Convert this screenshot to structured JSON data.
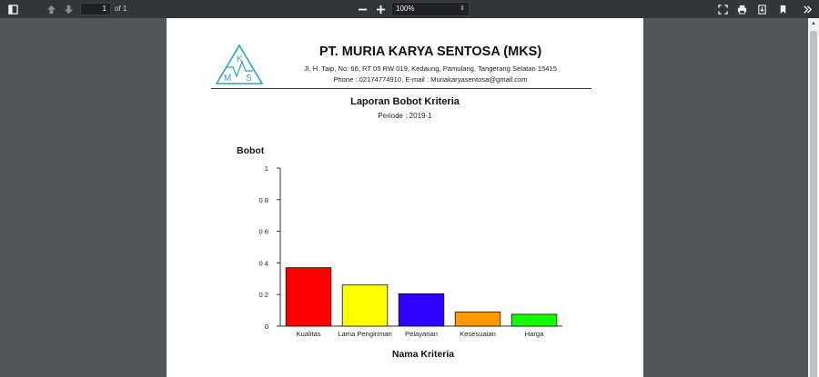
{
  "viewer": {
    "page_current": "1",
    "page_total": "of 1",
    "zoom": "100%",
    "icons": {
      "sidebar": "sidebar-toggle-icon",
      "prev": "arrow-up-icon",
      "next": "arrow-down-icon",
      "zoom_out": "minus-icon",
      "zoom_in": "plus-icon",
      "fit": "fit-page-icon",
      "print": "printer-icon",
      "download": "download-icon",
      "bookmark": "bookmark-icon",
      "more": "double-chevron-right-icon"
    }
  },
  "document": {
    "company": "PT. MURIA KARYA SENTOSA (MKS)",
    "address": "Jl. H. Taip, No: 66, RT 05 RW 019, Kedaung, Pamulang, Tangerang Selatan 15415",
    "contact": "Phone : 02174774910, E-mail : Muriakaryasentosa@gmail.com",
    "logo_letters": [
      "K",
      "M",
      "S"
    ],
    "logo_color": "#29a3c7",
    "report_title": "Laporan Bobot Kriteria",
    "period": "Periode : 2019-1"
  },
  "chart_data": {
    "type": "bar",
    "ylabel": "Bobot",
    "xlabel": "Nama Kriteria",
    "ylim": [
      0,
      1
    ],
    "yticks": [
      "0",
      "0 2",
      "0 4",
      "0 6",
      "0 8",
      "1"
    ],
    "ytick_values": [
      0,
      0.2,
      0.4,
      0.6,
      0.8,
      1
    ],
    "categories": [
      "Kualitas",
      "Lama Pengiriman",
      "Pelayanan",
      "Kesesuaian",
      "Harga"
    ],
    "values": [
      0.37,
      0.26,
      0.205,
      0.09,
      0.075
    ],
    "colors": [
      "#ff0000",
      "#ffff00",
      "#2e00ff",
      "#ff9900",
      "#11ff00"
    ],
    "grid": false
  }
}
